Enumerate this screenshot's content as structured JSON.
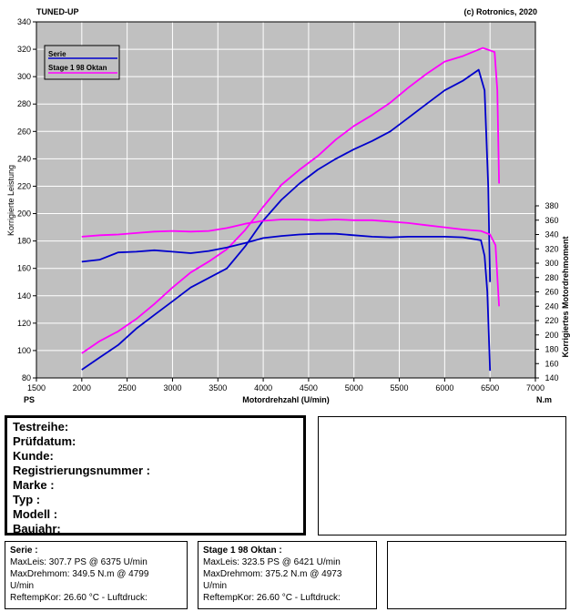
{
  "header": {
    "left": "TUNED-UP",
    "right": "(c) Rotronics, 2020"
  },
  "colors": {
    "plot_bg": "#c0c0c0",
    "grid": "#ffffff",
    "serie": "#0000cc",
    "stage": "#ff00ff"
  },
  "chart_data": {
    "type": "line",
    "xlabel": "Motordrehzahl (U/min)",
    "x_unit_label": "PS",
    "x_unit_label_right": "N.m",
    "ylabel_left": "Korrigierte Leistung",
    "ylabel_right": "Korrigiertes Motordrehmoment",
    "xlim": [
      1500,
      7000
    ],
    "ylim_left": [
      80,
      340
    ],
    "ylim_right": [
      140,
      380
    ],
    "x_ticks": [
      1500,
      2000,
      2500,
      3000,
      3500,
      4000,
      4500,
      5000,
      5500,
      6000,
      6500,
      7000
    ],
    "y_ticks_left": [
      80,
      100,
      120,
      140,
      160,
      180,
      200,
      220,
      240,
      260,
      280,
      300,
      320,
      340
    ],
    "y_ticks_right": [
      140,
      160,
      180,
      200,
      220,
      240,
      260,
      280,
      300,
      320,
      340,
      360,
      380
    ],
    "grid": true,
    "legend_position": "top-left",
    "series": [
      {
        "name": "Serie",
        "kind": "power",
        "axis": "left",
        "color": "#0000cc",
        "x": [
          2000,
          2200,
          2400,
          2600,
          2800,
          3000,
          3200,
          3400,
          3600,
          3800,
          4000,
          4200,
          4400,
          4600,
          4800,
          5000,
          5200,
          5400,
          5600,
          5800,
          6000,
          6200,
          6375,
          6440,
          6480,
          6500
        ],
        "y": [
          86,
          95,
          104,
          116,
          126,
          136,
          146,
          153,
          160,
          176,
          195,
          210,
          222,
          232,
          240,
          247,
          253,
          260,
          270,
          280,
          290,
          297,
          305,
          290,
          220,
          150
        ]
      },
      {
        "name": "Stage 1 98 Oktan",
        "kind": "power",
        "axis": "left",
        "color": "#ff00ff",
        "x": [
          2000,
          2200,
          2400,
          2600,
          2800,
          3000,
          3200,
          3400,
          3600,
          3800,
          4000,
          4200,
          4400,
          4600,
          4800,
          5000,
          5200,
          5400,
          5600,
          5800,
          6000,
          6200,
          6421,
          6550,
          6580,
          6600
        ],
        "y": [
          98,
          107,
          114,
          123,
          134,
          146,
          157,
          165,
          174,
          188,
          205,
          221,
          232,
          242,
          254,
          264,
          272,
          281,
          292,
          302,
          311,
          315,
          321,
          318,
          290,
          222
        ]
      },
      {
        "name": "Serie",
        "kind": "torque",
        "axis": "right",
        "color": "#0000cc",
        "x": [
          2000,
          2200,
          2400,
          2600,
          2800,
          3000,
          3200,
          3400,
          3600,
          3800,
          4000,
          4200,
          4400,
          4600,
          4800,
          5000,
          5200,
          5400,
          5600,
          5800,
          6000,
          6200,
          6400,
          6440,
          6470,
          6500
        ],
        "y": [
          302,
          305,
          315,
          316,
          318,
          316,
          314,
          317,
          322,
          328,
          335,
          338,
          340,
          341,
          341,
          339,
          337,
          336,
          337,
          337,
          337,
          336,
          332,
          310,
          260,
          150
        ]
      },
      {
        "name": "Stage 1 98 Oktan",
        "kind": "torque",
        "axis": "right",
        "color": "#ff00ff",
        "x": [
          2000,
          2200,
          2400,
          2600,
          2800,
          3000,
          3200,
          3400,
          3600,
          3800,
          4000,
          4200,
          4400,
          4600,
          4800,
          5000,
          5200,
          5400,
          5600,
          5800,
          6000,
          6200,
          6400,
          6500,
          6560,
          6600
        ],
        "y": [
          337,
          339,
          340,
          342,
          344,
          345,
          344,
          345,
          349,
          355,
          359,
          361,
          361,
          360,
          361,
          360,
          360,
          358,
          356,
          353,
          350,
          347,
          345,
          340,
          325,
          240
        ]
      }
    ]
  },
  "info": {
    "lines": [
      "Testreihe:",
      "Prüfdatum:",
      "Kunde:",
      "Registrierungsnummer  :",
      "Marke  :",
      "Typ  :",
      "Modell  :",
      "Baujahr:"
    ]
  },
  "summary": {
    "serie": {
      "title": "Serie :",
      "lines": [
        "MaxLeis: 307.7 PS @ 6375 U/min",
        "MaxDrehmom: 349.5 N.m @ 4799",
        "U/min",
        "ReftempKor: 26.60 °C - Luftdruck:"
      ]
    },
    "stage": {
      "title": "Stage 1 98 Oktan :",
      "lines": [
        "MaxLeis: 323.5 PS @ 6421 U/min",
        "MaxDrehmom: 375.2 N.m @ 4973",
        "U/min",
        "ReftempKor: 26.60 °C - Luftdruck:"
      ]
    }
  }
}
